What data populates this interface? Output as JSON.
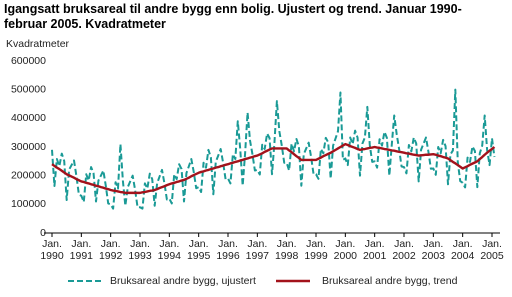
{
  "chart_data": {
    "type": "line",
    "title": "Igangsatt bruksareal til andre bygg enn bolig. Ujustert og trend. Januar 1990-februar 2005. Kvadratmeter",
    "y_label": "Kvadratmeter",
    "categories": [
      "Jan. 1990",
      null,
      null,
      null,
      null,
      null,
      null,
      null,
      null,
      null,
      null,
      null,
      "Jan. 1991",
      null,
      null,
      null,
      null,
      null,
      null,
      null,
      null,
      null,
      null,
      null,
      "Jan. 1992",
      null,
      null,
      null,
      null,
      null,
      null,
      null,
      null,
      null,
      null,
      null,
      "Jan. 1993",
      null,
      null,
      null,
      null,
      null,
      null,
      null,
      null,
      null,
      null,
      null,
      "Jan. 1994",
      null,
      null,
      null,
      null,
      null,
      null,
      null,
      null,
      null,
      null,
      null,
      "Jan. 1995",
      null,
      null,
      null,
      null,
      null,
      null,
      null,
      null,
      null,
      null,
      null,
      "Jan. 1996",
      null,
      null,
      null,
      null,
      null,
      null,
      null,
      null,
      null,
      null,
      null,
      "Jan. 1997",
      null,
      null,
      null,
      null,
      null,
      null,
      null,
      null,
      null,
      null,
      null,
      "Jan. 1998",
      null,
      null,
      null,
      null,
      null,
      null,
      null,
      null,
      null,
      null,
      null,
      "Jan. 1999",
      null,
      null,
      null,
      null,
      null,
      null,
      null,
      null,
      null,
      null,
      null,
      "Jan. 2000",
      null,
      null,
      null,
      null,
      null,
      null,
      null,
      null,
      null,
      null,
      null,
      "Jan. 2001",
      null,
      null,
      null,
      null,
      null,
      null,
      null,
      null,
      null,
      null,
      null,
      "Jan. 2002",
      null,
      null,
      null,
      null,
      null,
      null,
      null,
      null,
      null,
      null,
      null,
      "Jan. 2003",
      null,
      null,
      null,
      null,
      null,
      null,
      null,
      null,
      null,
      null,
      null,
      "Jan. 2004",
      null,
      null,
      null,
      null,
      null,
      null,
      null,
      null,
      null,
      null,
      null,
      "Jan. 2005",
      null
    ],
    "series": [
      {
        "name": "Bruksareal andre bygg, ujustert",
        "color": "#1a9a96",
        "dashed": true,
        "values": [
          290000,
          164000,
          258000,
          233000,
          277000,
          251000,
          115000,
          221000,
          237000,
          253000,
          198000,
          134000,
          130000,
          108000,
          205000,
          183000,
          230000,
          208000,
          110000,
          183000,
          200000,
          218000,
          165000,
          103000,
          100000,
          85000,
          177000,
          155000,
          310000,
          182000,
          95000,
          160000,
          180000,
          200000,
          150000,
          90000,
          90000,
          85000,
          173000,
          155000,
          207000,
          188000,
          95000,
          173000,
          197000,
          220000,
          173000,
          117000,
          120000,
          103000,
          205000,
          188000,
          240000,
          223000,
          110000,
          209000,
          233000,
          258000,
          212000,
          156000,
          160000,
          143000,
          245000,
          228000,
          290000,
          263000,
          135000,
          248000,
          270000,
          293000,
          245000,
          188000,
          190000,
          173000,
          275000,
          258000,
          390000,
          293000,
          165000,
          278000,
          420000,
          323000,
          275000,
          218000,
          220000,
          204000,
          308000,
          293000,
          347000,
          331000,
          205000,
          315000,
          460000,
          355000,
          305000,
          245000,
          245000,
          218000,
          312000,
          285000,
          328000,
          302000,
          165000,
          275000,
          295000,
          315000,
          265000,
          205000,
          205000,
          189000,
          293000,
          278000,
          332000,
          316000,
          190000,
          305000,
          330000,
          355000,
          490000,
          255000,
          260000,
          237000,
          333000,
          310000,
          357000,
          333000,
          200000,
          312000,
          333000,
          440000,
          307000,
          248000,
          250000,
          228000,
          327000,
          305000,
          353000,
          332000,
          200000,
          308000,
          410000,
          345000,
          293000,
          232000,
          230000,
          208000,
          307000,
          285000,
          333000,
          312000,
          180000,
          291000,
          312000,
          333000,
          283000,
          224000,
          225000,
          203000,
          300000,
          278000,
          325000,
          303000,
          170000,
          274000,
          288000,
          500000,
          247000,
          181000,
          175000,
          159000,
          263000,
          248000,
          302000,
          286000,
          160000,
          278000,
          305000,
          410000,
          290000,
          237000,
          330000,
          265000
        ]
      },
      {
        "name": "Bruksareal andre bygg, trend",
        "color": "#a3121b",
        "dashed": false,
        "values": [
          240000,
          234000,
          228000,
          223000,
          217000,
          211000,
          205000,
          201000,
          197000,
          193000,
          188000,
          184000,
          180000,
          178000,
          175000,
          173000,
          170000,
          168000,
          165000,
          163000,
          160000,
          158000,
          155000,
          153000,
          150000,
          148000,
          147000,
          145000,
          143000,
          142000,
          140000,
          140000,
          140000,
          140000,
          140000,
          140000,
          140000,
          142000,
          143000,
          145000,
          147000,
          148000,
          150000,
          153000,
          157000,
          160000,
          163000,
          167000,
          170000,
          173000,
          175000,
          178000,
          180000,
          183000,
          185000,
          189000,
          193000,
          198000,
          202000,
          206000,
          210000,
          213000,
          215000,
          218000,
          220000,
          223000,
          225000,
          228000,
          230000,
          233000,
          235000,
          238000,
          240000,
          243000,
          245000,
          248000,
          250000,
          253000,
          255000,
          258000,
          260000,
          263000,
          265000,
          268000,
          270000,
          274000,
          278000,
          283000,
          287000,
          291000,
          295000,
          295000,
          295000,
          295000,
          295000,
          295000,
          295000,
          288000,
          282000,
          275000,
          268000,
          262000,
          255000,
          255000,
          255000,
          255000,
          255000,
          255000,
          255000,
          259000,
          263000,
          268000,
          272000,
          276000,
          280000,
          285000,
          290000,
          295000,
          300000,
          305000,
          310000,
          307000,
          303000,
          300000,
          297000,
          293000,
          290000,
          292000,
          293000,
          295000,
          297000,
          298000,
          300000,
          298000,
          297000,
          295000,
          293000,
          292000,
          290000,
          288000,
          287000,
          285000,
          283000,
          282000,
          280000,
          278000,
          277000,
          275000,
          273000,
          272000,
          270000,
          271000,
          272000,
          273000,
          273000,
          274000,
          275000,
          273000,
          270000,
          268000,
          265000,
          263000,
          260000,
          254000,
          248000,
          243000,
          237000,
          231000,
          225000,
          229000,
          233000,
          238000,
          242000,
          246000,
          250000,
          258000,
          265000,
          273000,
          280000,
          287000,
          293000,
          300000
        ]
      }
    ],
    "ylim": [
      0,
      600000
    ],
    "yticks": [
      0,
      100000,
      200000,
      300000,
      400000,
      500000,
      600000
    ],
    "grid": false,
    "legend": "bottom"
  }
}
